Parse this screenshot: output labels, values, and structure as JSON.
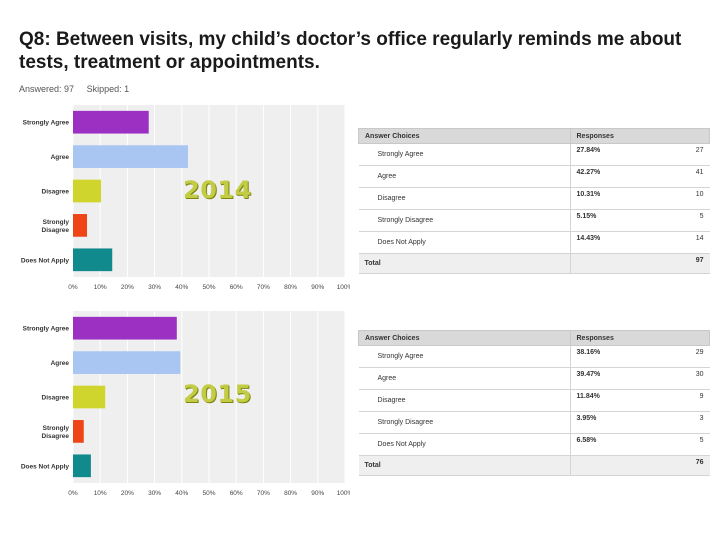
{
  "title": "Q8: Between visits, my child’s doctor’s office regularly reminds me about tests, treatment or appointments.",
  "answered": "Answered: 97",
  "skipped": "Skipped: 1",
  "colors": [
    "#9b30c3",
    "#a9c5f2",
    "#d0d52e",
    "#ee4416",
    "#118a8e"
  ],
  "chart_data": [
    {
      "type": "bar",
      "year": "2014",
      "categories": [
        "Strongly Agree",
        "Agree",
        "Disagree",
        "Strongly Disagree",
        "Does Not Apply"
      ],
      "values": [
        27.84,
        42.27,
        10.31,
        5.15,
        14.43
      ],
      "xlim": [
        0,
        100
      ],
      "ticks": [
        "0%",
        "10%",
        "20%",
        "30%",
        "40%",
        "50%",
        "60%",
        "70%",
        "80%",
        "90%",
        "100%"
      ]
    },
    {
      "type": "bar",
      "year": "2015",
      "categories": [
        "Strongly Agree",
        "Agree",
        "Disagree",
        "Strongly Disagree",
        "Does Not Apply"
      ],
      "values": [
        38.16,
        39.47,
        11.84,
        3.95,
        6.58
      ],
      "xlim": [
        0,
        100
      ],
      "ticks": [
        "0%",
        "10%",
        "20%",
        "30%",
        "40%",
        "50%",
        "60%",
        "70%",
        "80%",
        "90%",
        "100%"
      ]
    }
  ],
  "tables": [
    {
      "headers": [
        "Answer Choices",
        "Responses"
      ],
      "rows": [
        {
          "choice": "Strongly Agree",
          "pct": "27.84%",
          "count": "27"
        },
        {
          "choice": "Agree",
          "pct": "42.27%",
          "count": "41"
        },
        {
          "choice": "Disagree",
          "pct": "10.31%",
          "count": "10"
        },
        {
          "choice": "Strongly Disagree",
          "pct": "5.15%",
          "count": "5"
        },
        {
          "choice": "Does Not Apply",
          "pct": "14.43%",
          "count": "14"
        }
      ],
      "total_label": "Total",
      "total": "97"
    },
    {
      "headers": [
        "Answer Choices",
        "Responses"
      ],
      "rows": [
        {
          "choice": "Strongly Agree",
          "pct": "38.16%",
          "count": "29"
        },
        {
          "choice": "Agree",
          "pct": "39.47%",
          "count": "30"
        },
        {
          "choice": "Disagree",
          "pct": "11.84%",
          "count": "9"
        },
        {
          "choice": "Strongly Disagree",
          "pct": "3.95%",
          "count": "3"
        },
        {
          "choice": "Does Not Apply",
          "pct": "6.58%",
          "count": "5"
        }
      ],
      "total_label": "Total",
      "total": "76"
    }
  ]
}
